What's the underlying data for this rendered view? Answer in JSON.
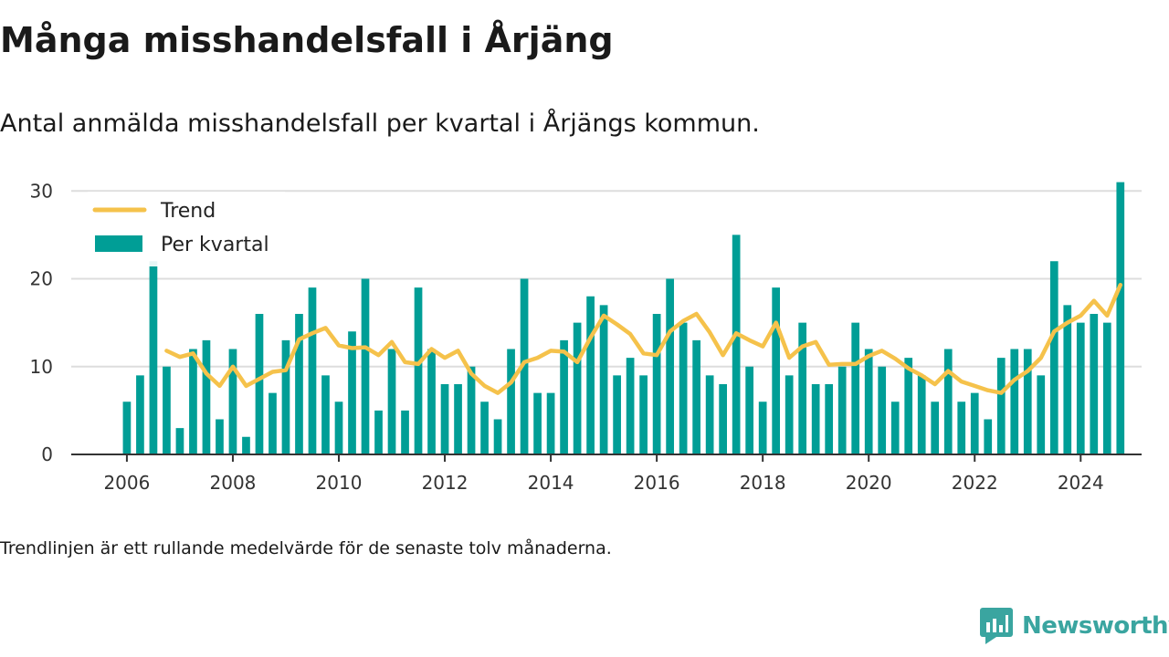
{
  "header": {
    "title": "Många misshandelsfall i Årjäng",
    "subtitle": "Antal anmälda misshandelsfall per kvartal i Årjängs kommun."
  },
  "footnote": "Trendlinjen är ett rullande medelvärde för de senaste tolv månaderna.",
  "brand": {
    "name": "Newsworthy",
    "icon": "newsworthy-logo-icon",
    "color": "#3aa5a0"
  },
  "chart_data": {
    "type": "bar",
    "x_start": 2006.0,
    "x_step": 0.25,
    "xlim": [
      2004.95,
      2025.15
    ],
    "ylim": [
      0,
      32
    ],
    "x_ticks": [
      2006,
      2008,
      2010,
      2012,
      2014,
      2016,
      2018,
      2020,
      2022,
      2024
    ],
    "x_tick_labels": [
      "2006",
      "2008",
      "2010",
      "2012",
      "2014",
      "2016",
      "2018",
      "2020",
      "2022",
      "2024"
    ],
    "y_ticks": [
      0,
      10,
      20,
      30
    ],
    "y_tick_labels": [
      "0",
      "10",
      "20",
      "30"
    ],
    "grid": true,
    "legend_position": "top-left",
    "colors": {
      "bars": "#009e96",
      "trend": "#f5c24b",
      "grid": "#dddddd",
      "axis": "#333333"
    },
    "series": [
      {
        "name": "Per kvartal",
        "type": "bar",
        "values": [
          6,
          9,
          22,
          10,
          3,
          12,
          13,
          4,
          12,
          2,
          16,
          7,
          13,
          16,
          19,
          9,
          6,
          14,
          20,
          5,
          12,
          5,
          19,
          12,
          8,
          8,
          10,
          6,
          4,
          12,
          20,
          7,
          7,
          13,
          15,
          18,
          17,
          9,
          11,
          9,
          16,
          20,
          15,
          13,
          9,
          8,
          25,
          10,
          6,
          19,
          9,
          15,
          8,
          8,
          10,
          15,
          12,
          10,
          6,
          11,
          9,
          6,
          12,
          6,
          7,
          4,
          11,
          12,
          12,
          9,
          22,
          17,
          15,
          16,
          15,
          31
        ]
      },
      {
        "name": "Trend",
        "type": "line",
        "x_start": 2006.75,
        "values": [
          11.8,
          11.1,
          11.5,
          9.2,
          7.8,
          10.0,
          7.8,
          8.6,
          9.4,
          9.6,
          13.1,
          13.8,
          14.4,
          12.4,
          12.1,
          12.2,
          11.3,
          12.8,
          10.5,
          10.3,
          12.0,
          11.0,
          11.8,
          9.2,
          7.8,
          7.0,
          8.2,
          10.5,
          11.0,
          11.8,
          11.7,
          10.5,
          13.3,
          15.8,
          14.8,
          13.7,
          11.5,
          11.3,
          14.0,
          15.2,
          16.0,
          13.9,
          11.3,
          13.8,
          13.0,
          12.3,
          15.0,
          11.0,
          12.3,
          12.8,
          10.2,
          10.3,
          10.3,
          11.2,
          11.8,
          10.9,
          9.8,
          9.0,
          8.0,
          9.5,
          8.3,
          7.8,
          7.3,
          7.0,
          8.5,
          9.5,
          11.0,
          14.0,
          15.0,
          15.8,
          17.5,
          15.8,
          19.3
        ]
      }
    ]
  }
}
